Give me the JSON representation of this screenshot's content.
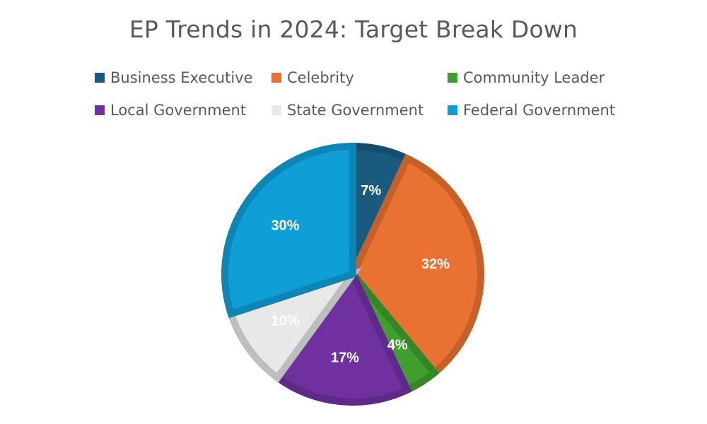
{
  "chart_data": {
    "type": "pie",
    "title": "EP Trends in 2024: Target Break Down",
    "legend_position": "top",
    "slices": [
      {
        "name": "Business Executive",
        "value": 7,
        "label": "7%",
        "color": "#1a5a7e"
      },
      {
        "name": "Celebrity",
        "value": 32,
        "label": "32%",
        "color": "#e97132"
      },
      {
        "name": "Community Leader",
        "value": 4,
        "label": "4%",
        "color": "#3f9e2e"
      },
      {
        "name": "Local Government",
        "value": 17,
        "label": "17%",
        "color": "#7030a0"
      },
      {
        "name": "State Government",
        "value": 10,
        "label": "10%",
        "color": "#e8e8e8"
      },
      {
        "name": "Federal Government",
        "value": 30,
        "label": "30%",
        "color": "#0f9ed5"
      }
    ],
    "legend_order": [
      "Business Executive",
      "Celebrity",
      "Community Leader",
      "Local Government",
      "State Government",
      "Federal Government"
    ]
  }
}
